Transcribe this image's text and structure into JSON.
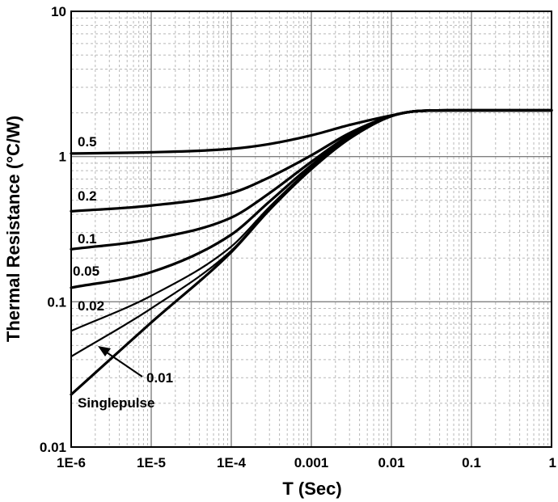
{
  "chart_data": {
    "type": "line",
    "x_scale": "log",
    "y_scale": "log",
    "xlabel": "T (Sec)",
    "ylabel": "Thermal Resistance (°C/W)",
    "xlim": [
      1e-06,
      1
    ],
    "ylim": [
      0.01,
      10
    ],
    "grid": true,
    "x_ticks": [
      {
        "value": 1e-06,
        "label": "1E-6"
      },
      {
        "value": 1e-05,
        "label": "1E-5"
      },
      {
        "value": 0.0001,
        "label": "1E-4"
      },
      {
        "value": 0.001,
        "label": "0.001"
      },
      {
        "value": 0.01,
        "label": "0.01"
      },
      {
        "value": 0.1,
        "label": "0.1"
      },
      {
        "value": 1,
        "label": "1"
      }
    ],
    "y_ticks": [
      {
        "value": 0.01,
        "label": "0.01"
      },
      {
        "value": 0.1,
        "label": "0.1"
      },
      {
        "value": 1,
        "label": "1"
      },
      {
        "value": 10,
        "label": "10"
      }
    ],
    "series": [
      {
        "name": "0.5",
        "x": [
          1e-06,
          1e-05,
          0.0001,
          0.0003,
          0.001,
          0.003,
          0.01,
          0.02,
          0.05,
          0.1,
          1
        ],
        "y": [
          1.05,
          1.07,
          1.13,
          1.22,
          1.4,
          1.65,
          1.92,
          2.05,
          2.08,
          2.08,
          2.08
        ]
      },
      {
        "name": "0.2",
        "x": [
          1e-06,
          1e-05,
          0.0001,
          0.0003,
          0.001,
          0.003,
          0.01,
          0.02,
          0.05,
          0.1,
          1
        ],
        "y": [
          0.42,
          0.46,
          0.56,
          0.72,
          1.02,
          1.45,
          1.9,
          2.05,
          2.08,
          2.08,
          2.08
        ]
      },
      {
        "name": "0.1",
        "x": [
          1e-06,
          1e-05,
          0.0001,
          0.0003,
          0.001,
          0.003,
          0.01,
          0.02,
          0.05,
          0.1,
          1
        ],
        "y": [
          0.23,
          0.27,
          0.38,
          0.56,
          0.92,
          1.4,
          1.9,
          2.05,
          2.08,
          2.08,
          2.08
        ]
      },
      {
        "name": "0.05",
        "x": [
          1e-06,
          1e-05,
          0.0001,
          0.0003,
          0.001,
          0.003,
          0.01,
          0.02,
          0.05,
          0.1,
          1
        ],
        "y": [
          0.125,
          0.16,
          0.29,
          0.49,
          0.87,
          1.37,
          1.9,
          2.05,
          2.08,
          2.08,
          2.08
        ]
      },
      {
        "name": "0.02",
        "x": [
          1e-06,
          1e-05,
          0.0001,
          0.0003,
          0.001,
          0.003,
          0.01,
          0.02,
          0.05,
          0.1,
          1
        ],
        "y": [
          0.063,
          0.11,
          0.24,
          0.45,
          0.84,
          1.35,
          1.9,
          2.05,
          2.08,
          2.08,
          2.08
        ]
      },
      {
        "name": "0.01",
        "x": [
          1e-06,
          1e-05,
          0.0001,
          0.0003,
          0.001,
          0.003,
          0.01,
          0.02,
          0.05,
          0.1,
          1
        ],
        "y": [
          0.042,
          0.09,
          0.225,
          0.44,
          0.83,
          1.34,
          1.9,
          2.05,
          2.08,
          2.08,
          2.08
        ]
      },
      {
        "name": "Singlepulse",
        "x": [
          1e-06,
          1e-05,
          0.0001,
          0.0003,
          0.001,
          0.003,
          0.01,
          0.02,
          0.05,
          0.1,
          1
        ],
        "y": [
          0.023,
          0.072,
          0.22,
          0.43,
          0.82,
          1.33,
          1.9,
          2.05,
          2.08,
          2.08,
          2.08
        ]
      }
    ],
    "annotations": [
      {
        "text": "0.5",
        "series": "0.5"
      },
      {
        "text": "0.2",
        "series": "0.2"
      },
      {
        "text": "0.1",
        "series": "0.1"
      },
      {
        "text": "0.05",
        "series": "0.05"
      },
      {
        "text": "0.02",
        "series": "0.02"
      },
      {
        "text": "0.01",
        "series": "0.01",
        "arrow": true
      },
      {
        "text": "Singlepulse",
        "series": "Singlepulse"
      }
    ]
  }
}
